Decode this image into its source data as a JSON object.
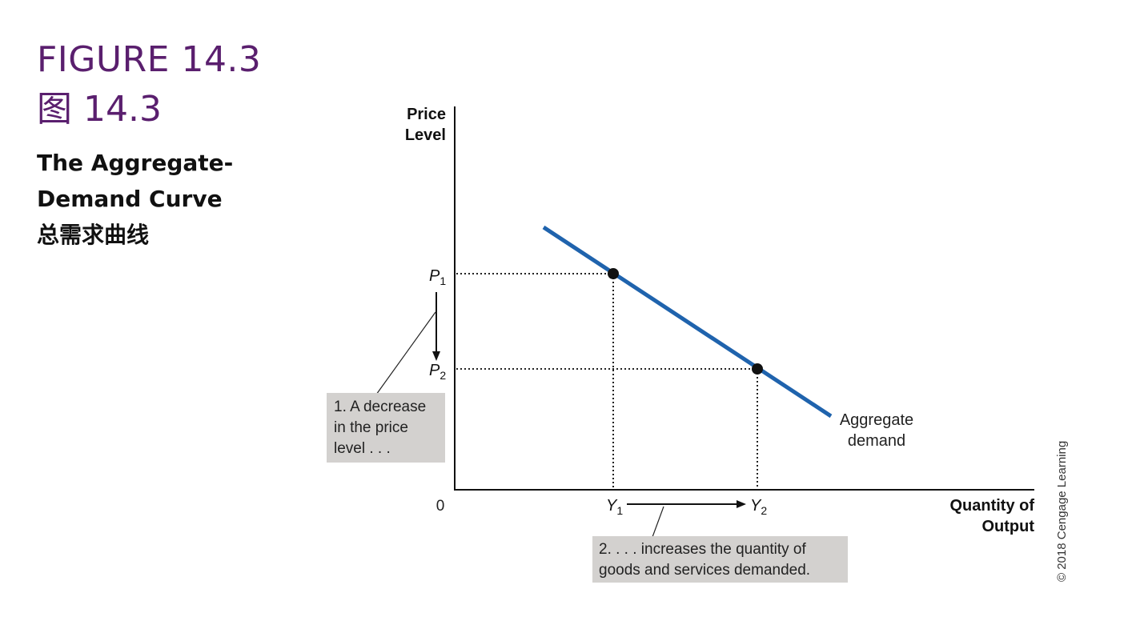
{
  "figure": {
    "number_en": "FIGURE 14.3",
    "number_cn": "图 14.3",
    "title_en": "The Aggregate-Demand Curve",
    "title_cn": "总需求曲线"
  },
  "chart_data": {
    "type": "line",
    "ylabel": [
      "Price",
      "Level"
    ],
    "xlabel": [
      "Quantity of",
      "Output"
    ],
    "origin_label": "0",
    "y_ticks": [
      {
        "label": "P",
        "sub": "1"
      },
      {
        "label": "P",
        "sub": "2"
      }
    ],
    "x_ticks": [
      {
        "label": "Y",
        "sub": "1"
      },
      {
        "label": "Y",
        "sub": "2"
      }
    ],
    "series": [
      {
        "name": "Aggregate demand",
        "name_lines": [
          "Aggregate",
          "demand"
        ],
        "color": "#1f63ad"
      }
    ],
    "points": [
      {
        "x": "Y1",
        "y": "P1"
      },
      {
        "x": "Y2",
        "y": "P2"
      }
    ],
    "annotations": [
      {
        "lines": [
          "1. A decrease",
          "in the price",
          "level . . ."
        ]
      },
      {
        "lines": [
          "2. . . . increases the quantity of",
          "goods and services demanded."
        ]
      }
    ]
  },
  "credit": "© 2018 Cengage Learning"
}
